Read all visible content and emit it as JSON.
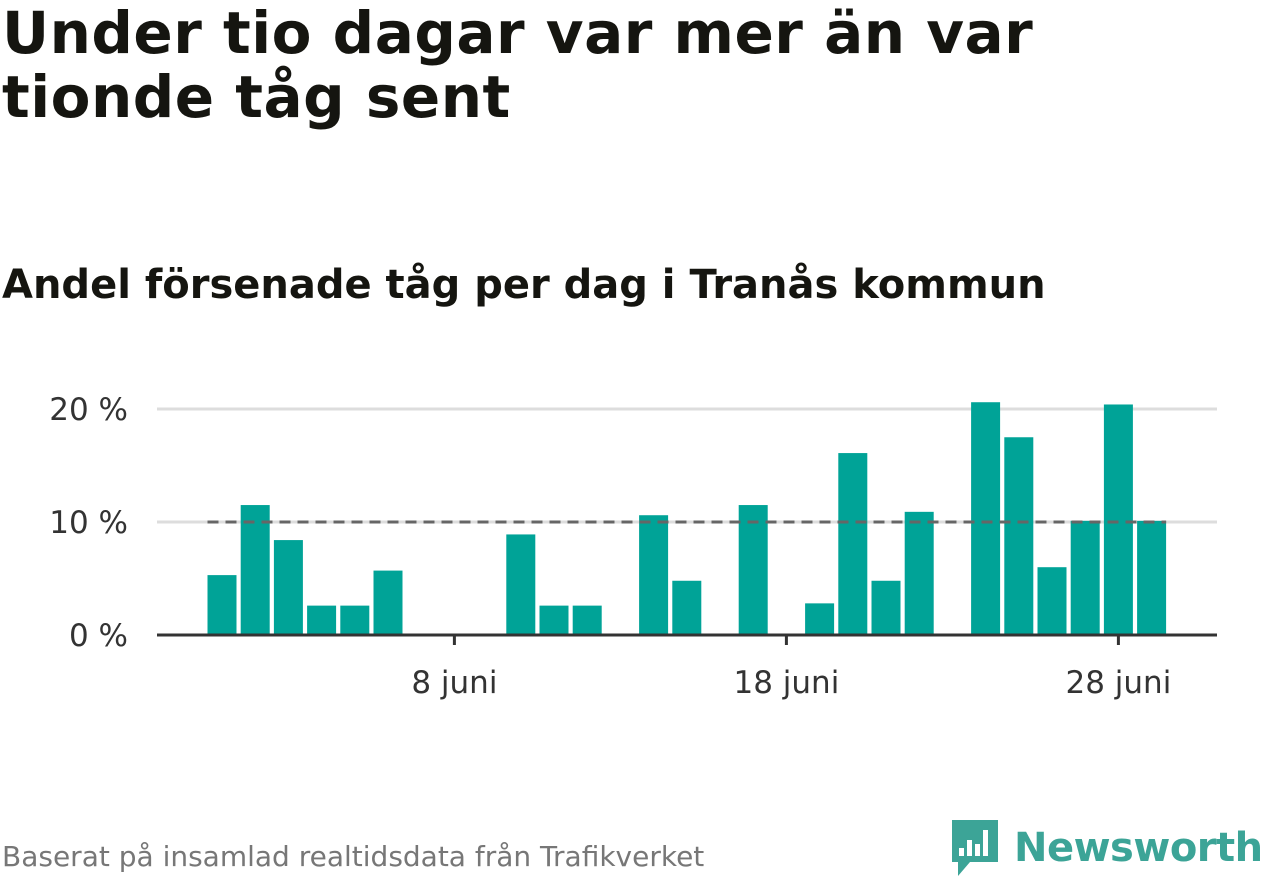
{
  "title": "Under tio dagar var mer än var tionde tåg sent",
  "subtitle": "Andel försenade tåg per dag i Tranås kommun",
  "footer": "Baserat på insamlad realtidsdata från Trafikverket",
  "logo_text": "Newsworthy",
  "colors": {
    "bar": "#00a397",
    "reference_line": "#666666",
    "grid": "#dddddd",
    "axis": "#333333",
    "logo": "#3ca497"
  },
  "chart_data": {
    "type": "bar",
    "title": "Andel försenade tåg per dag i Tranås kommun",
    "xlabel": "",
    "ylabel": "",
    "x_unit": "day of June",
    "x": [
      1,
      2,
      3,
      4,
      5,
      6,
      7,
      8,
      9,
      10,
      11,
      12,
      13,
      14,
      15,
      16,
      17,
      18,
      19,
      20,
      21,
      22,
      23,
      24,
      25,
      26,
      27,
      28,
      29
    ],
    "values": [
      5.3,
      11.5,
      8.4,
      2.6,
      2.6,
      5.7,
      0,
      0,
      0,
      8.9,
      2.6,
      2.6,
      0,
      10.6,
      4.8,
      0,
      11.5,
      0,
      2.8,
      16.1,
      4.8,
      10.9,
      0,
      20.6,
      17.5,
      6.0,
      10.1,
      20.4,
      10.1
    ],
    "x_ticks": [
      {
        "x": 8,
        "label": "8 juni"
      },
      {
        "x": 18,
        "label": "18 juni"
      },
      {
        "x": 28,
        "label": "28 juni"
      }
    ],
    "y_ticks": [
      {
        "value": 0,
        "label": "0 %"
      },
      {
        "value": 10,
        "label": "10 %"
      },
      {
        "value": 20,
        "label": "20 %"
      }
    ],
    "ylim": [
      0,
      20
    ],
    "reference_line": 10,
    "grid": true
  }
}
